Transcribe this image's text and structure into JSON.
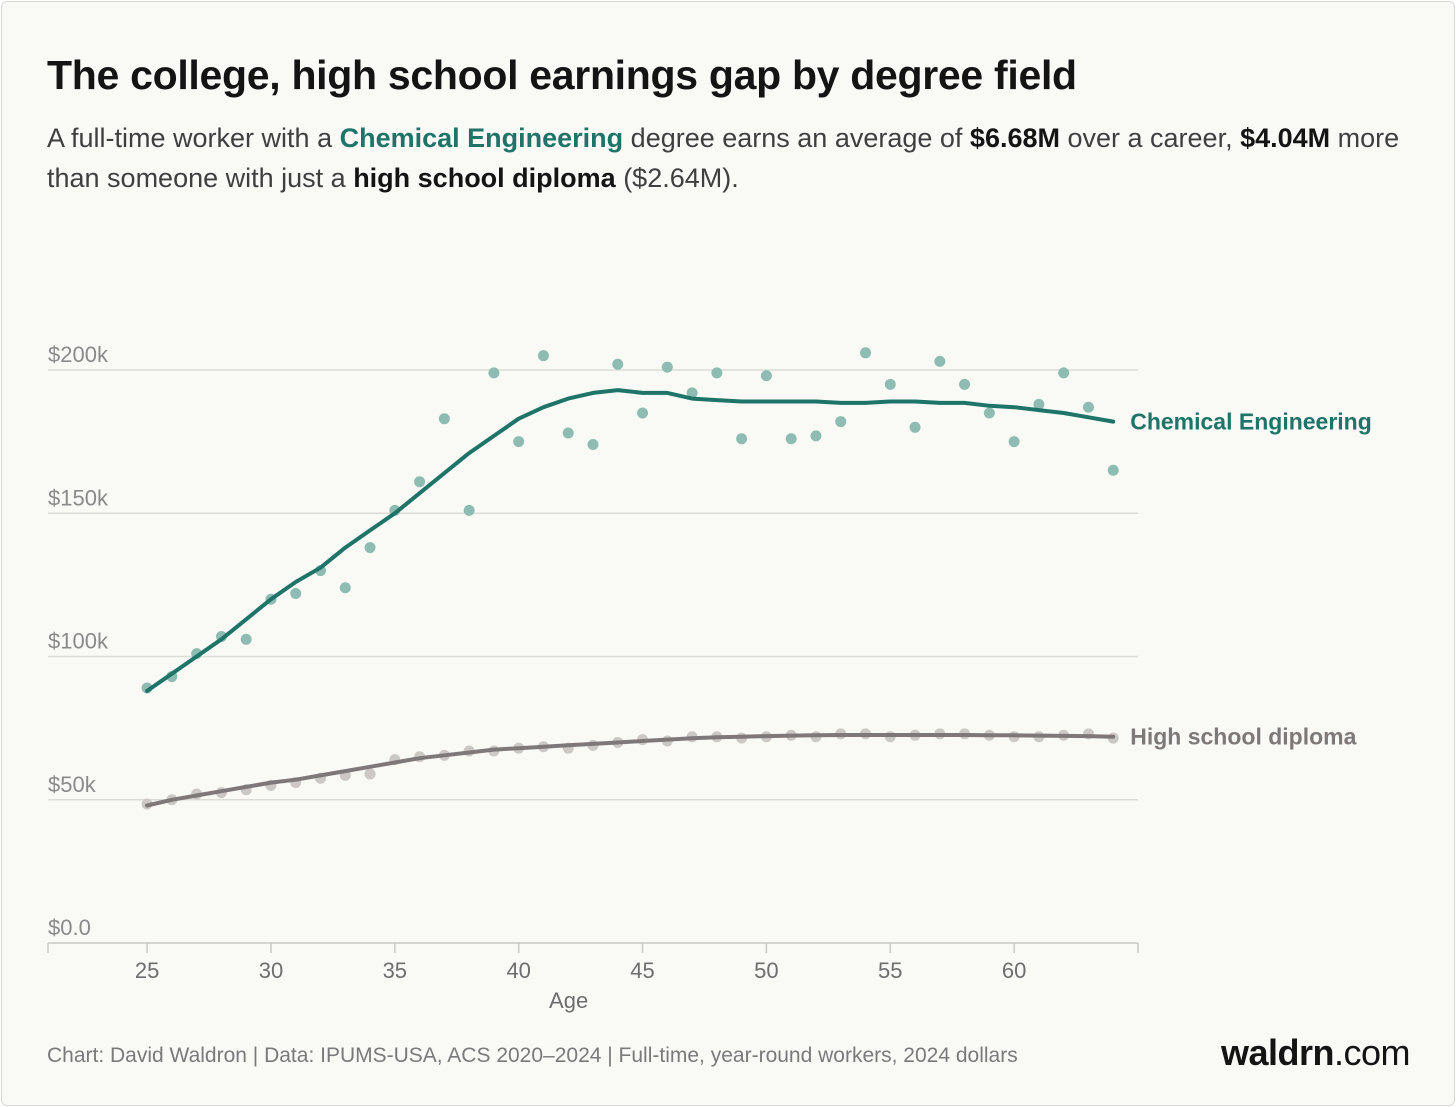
{
  "header": {
    "title": "The college, high school earnings gap by degree field",
    "subtitle": {
      "p1": "A full-time worker with a ",
      "field": "Chemical Engineering",
      "p2": " degree earns an average of ",
      "college_total": "$6.68M",
      "p3": " over a career, ",
      "gap": "$4.04M",
      "p4": " more than someone with just a ",
      "hs_label": "high school diploma",
      "p5": " ($2.64M)."
    }
  },
  "chart_data": {
    "type": "line",
    "xlabel": "Age",
    "ylabel": "",
    "xlim": [
      21,
      65
    ],
    "ylim": [
      0,
      200000
    ],
    "x_ticks": [
      25,
      30,
      35,
      40,
      45,
      50,
      55,
      60
    ],
    "x_tick_labels": [
      "25",
      "30",
      "35",
      "40",
      "45",
      "50",
      "55",
      "60"
    ],
    "y_ticks": [
      0,
      50000,
      100000,
      150000,
      200000
    ],
    "y_tick_labels": [
      "$0.0",
      "$50k",
      "$100k",
      "$150k",
      "$200k"
    ],
    "grid": true,
    "legend": "direct labels at right end of lines",
    "x": [
      25,
      26,
      27,
      28,
      29,
      30,
      31,
      32,
      33,
      34,
      35,
      36,
      37,
      38,
      39,
      40,
      41,
      42,
      43,
      44,
      45,
      46,
      47,
      48,
      49,
      50,
      51,
      52,
      53,
      54,
      55,
      56,
      57,
      58,
      59,
      60,
      61,
      62,
      63,
      64
    ],
    "series": [
      {
        "name": "Chemical Engineering",
        "color": "#1e7468",
        "points_color": "#8fbcb2",
        "trend": [
          88000,
          94000,
          100000,
          106000,
          113000,
          120000,
          126000,
          131000,
          138000,
          144000,
          150000,
          157000,
          164000,
          171000,
          177000,
          183000,
          187000,
          190000,
          192000,
          193000,
          192000,
          192000,
          190000,
          189500,
          189000,
          189000,
          189000,
          189000,
          188500,
          188500,
          189000,
          189000,
          188500,
          188500,
          187500,
          187000,
          186000,
          185000,
          183500,
          182000
        ],
        "points": [
          89000,
          93000,
          101000,
          107000,
          106000,
          120000,
          122000,
          130000,
          124000,
          138000,
          151000,
          161000,
          183000,
          151000,
          199000,
          175000,
          205000,
          178000,
          174000,
          202000,
          185000,
          201000,
          192000,
          199000,
          176000,
          198000,
          176000,
          177000,
          182000,
          206000,
          195000,
          180000,
          203000,
          195000,
          185000,
          175000,
          188000,
          199000,
          187000,
          165000
        ]
      },
      {
        "name": "High school diploma",
        "color": "#7e7978",
        "points_color": "#cbc8c5",
        "trend": [
          48000,
          50000,
          51500,
          53000,
          54500,
          56000,
          57000,
          58500,
          60000,
          61500,
          63000,
          64500,
          65500,
          66500,
          67500,
          68000,
          68500,
          69000,
          69500,
          70000,
          70500,
          71000,
          71500,
          71800,
          72000,
          72200,
          72400,
          72500,
          72600,
          72600,
          72600,
          72600,
          72600,
          72600,
          72500,
          72500,
          72400,
          72300,
          72200,
          72000
        ],
        "points": [
          48500,
          50000,
          52000,
          52500,
          53500,
          55000,
          56000,
          57500,
          58500,
          59000,
          64000,
          65000,
          65500,
          67000,
          67000,
          68000,
          68500,
          68000,
          69000,
          70000,
          71000,
          70500,
          72000,
          72000,
          71500,
          72000,
          72500,
          72000,
          73000,
          73000,
          72000,
          72500,
          73000,
          73000,
          72500,
          72000,
          72000,
          72500,
          73000,
          71500
        ]
      }
    ]
  },
  "footer": {
    "source": "Chart: David Waldron | Data: IPUMS-USA, ACS 2020–2024 | Full-time, year-round workers, 2024 dollars",
    "brand_main": "waldrn",
    "brand_suffix": ".com"
  }
}
